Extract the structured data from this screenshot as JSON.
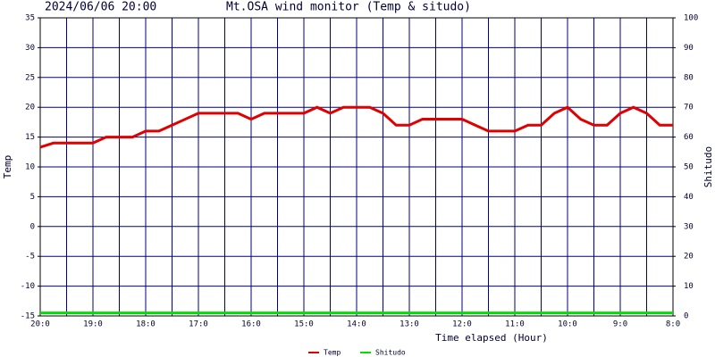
{
  "chart_data": {
    "type": "line",
    "subtitle": "2024/06/06 20:00",
    "title": "Mt.OSA wind monitor (Temp & situdo)",
    "x_label": "Time elapsed (Hour)",
    "y_label": "Temp",
    "y2_label": "Shitudo",
    "categories": [
      "20:0",
      null,
      null,
      null,
      "19:0",
      null,
      null,
      null,
      "18:0",
      null,
      null,
      null,
      "17:0",
      null,
      null,
      null,
      "16:0",
      null,
      null,
      null,
      "15:0",
      null,
      null,
      null,
      "14:0",
      null,
      null,
      null,
      "13:0",
      null,
      null,
      null,
      "12:0",
      null,
      null,
      null,
      "11:0",
      null,
      null,
      null,
      "10:0",
      null,
      null,
      null,
      "9:0",
      null,
      null,
      null,
      "8:0"
    ],
    "series": [
      {
        "name": "Temp",
        "color": "#e00000",
        "values": [
          13.3,
          14,
          14,
          14,
          14,
          15,
          15,
          15,
          16,
          16,
          17,
          18,
          19,
          19,
          19,
          19,
          18,
          19,
          19,
          19,
          19,
          20,
          19,
          20,
          20,
          20,
          19,
          17,
          17,
          18,
          18,
          18,
          18,
          17,
          16,
          16,
          16,
          17,
          17,
          19,
          20,
          18,
          17,
          17,
          19,
          20,
          19,
          17,
          17
        ]
      },
      {
        "name": "Shitudo",
        "color": "#00e000",
        "axis": "y2",
        "values": [
          1,
          1,
          1,
          1,
          1,
          1,
          1,
          1,
          1,
          1,
          1,
          1,
          1,
          1,
          1,
          1,
          1,
          1,
          1,
          1,
          1,
          1,
          1,
          1,
          1,
          1,
          1,
          1,
          1,
          1,
          1,
          1,
          1,
          1,
          1,
          1,
          1,
          1,
          1,
          1,
          1,
          1,
          1,
          1,
          1,
          1,
          1,
          1,
          1
        ]
      }
    ],
    "ylim": [
      -15,
      35
    ],
    "yticks": [
      -15,
      -10,
      -5,
      0,
      5,
      10,
      15,
      20,
      25,
      30,
      35
    ],
    "y2lim": [
      0,
      100
    ],
    "y2ticks": [
      0,
      10,
      20,
      30,
      40,
      50,
      60,
      70,
      80,
      90,
      100
    ],
    "grid": true
  }
}
